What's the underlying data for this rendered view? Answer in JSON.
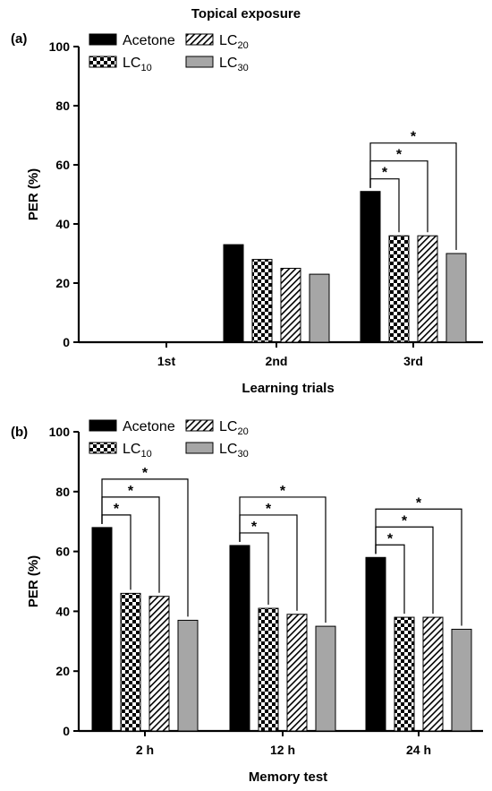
{
  "figure_title": "Topical exposure",
  "legend_labels": {
    "acetone": "Acetone",
    "lc10_base": "LC",
    "lc10_sub": "10",
    "lc20_base": "LC",
    "lc20_sub": "20",
    "lc30_base": "LC",
    "lc30_sub": "30"
  },
  "chart_data": [
    {
      "type": "bar",
      "panel_label": "(a)",
      "xlabel": "Learning trials",
      "ylabel": "PER (%)",
      "ylim": [
        0,
        100
      ],
      "yticks": [
        0,
        20,
        40,
        60,
        80,
        100
      ],
      "categories": [
        "1st",
        "2nd",
        "3rd"
      ],
      "legend_position": "top-left",
      "series": [
        {
          "name": "Acetone",
          "pattern": "solid-black",
          "values": [
            0,
            33,
            51
          ]
        },
        {
          "name": "LC10",
          "pattern": "checkerboard",
          "values": [
            0,
            28,
            36
          ]
        },
        {
          "name": "LC20",
          "pattern": "hatched",
          "values": [
            0,
            25,
            36
          ]
        },
        {
          "name": "LC30",
          "pattern": "solid-gray",
          "values": [
            0,
            23,
            30
          ]
        }
      ],
      "significance": [
        {
          "category": 2,
          "from_series": 0,
          "to_series": 1,
          "label": "*"
        },
        {
          "category": 2,
          "from_series": 0,
          "to_series": 2,
          "label": "*"
        },
        {
          "category": 2,
          "from_series": 0,
          "to_series": 3,
          "label": "*"
        }
      ]
    },
    {
      "type": "bar",
      "panel_label": "(b)",
      "xlabel": "Memory test",
      "ylabel": "PER (%)",
      "ylim": [
        0,
        100
      ],
      "yticks": [
        0,
        20,
        40,
        60,
        80,
        100
      ],
      "categories": [
        "2 h",
        "12 h",
        "24 h"
      ],
      "legend_position": "top-left",
      "series": [
        {
          "name": "Acetone",
          "pattern": "solid-black",
          "values": [
            68,
            62,
            58
          ]
        },
        {
          "name": "LC10",
          "pattern": "checkerboard",
          "values": [
            46,
            41,
            38
          ]
        },
        {
          "name": "LC20",
          "pattern": "hatched",
          "values": [
            45,
            39,
            38
          ]
        },
        {
          "name": "LC30",
          "pattern": "solid-gray",
          "values": [
            37,
            35,
            34
          ]
        }
      ],
      "significance": [
        {
          "category": 0,
          "from_series": 0,
          "to_series": 1,
          "label": "*"
        },
        {
          "category": 0,
          "from_series": 0,
          "to_series": 2,
          "label": "*"
        },
        {
          "category": 0,
          "from_series": 0,
          "to_series": 3,
          "label": "*"
        },
        {
          "category": 1,
          "from_series": 0,
          "to_series": 1,
          "label": "*"
        },
        {
          "category": 1,
          "from_series": 0,
          "to_series": 2,
          "label": "*"
        },
        {
          "category": 1,
          "from_series": 0,
          "to_series": 3,
          "label": "*"
        },
        {
          "category": 2,
          "from_series": 0,
          "to_series": 1,
          "label": "*"
        },
        {
          "category": 2,
          "from_series": 0,
          "to_series": 2,
          "label": "*"
        },
        {
          "category": 2,
          "from_series": 0,
          "to_series": 3,
          "label": "*"
        }
      ]
    }
  ]
}
